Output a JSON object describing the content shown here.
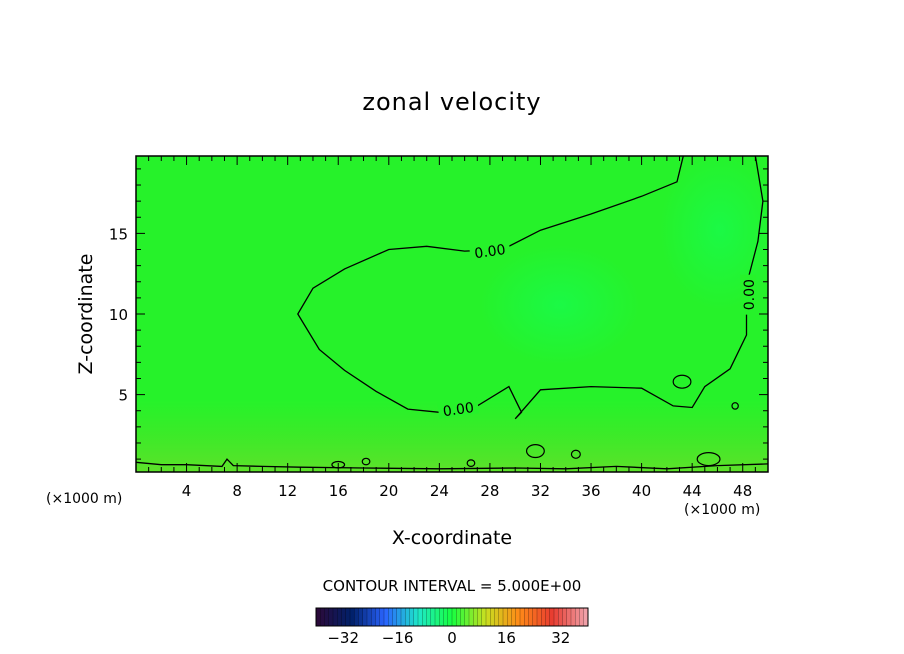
{
  "chart_data": {
    "type": "contour",
    "title": "zonal velocity",
    "xlabel": "X-coordinate",
    "ylabel": "Z-coordinate",
    "x_units_left": "(×1000 m)",
    "x_units_right": "(×1000 m)",
    "xlim": [
      0,
      50
    ],
    "ylim": [
      0.2,
      19.8
    ],
    "x_ticks": [
      4,
      8,
      12,
      16,
      20,
      24,
      28,
      32,
      36,
      40,
      44,
      48
    ],
    "y_ticks": [
      5,
      10,
      15
    ],
    "contour_interval_text": "CONTOUR INTERVAL = 5.000E+00",
    "contour_labels": [
      {
        "text": "0.00",
        "x": 28,
        "z": 13.9
      },
      {
        "text": "0.00",
        "x": 25.5,
        "z": 4.1
      },
      {
        "text": "0.00",
        "x": 48.5,
        "z": 11.2
      }
    ],
    "zero_contour_main": [
      [
        43.3,
        19.8
      ],
      [
        42.8,
        18.2
      ],
      [
        40,
        17.3
      ],
      [
        36,
        16.2
      ],
      [
        32,
        15.2
      ],
      [
        29,
        14
      ],
      [
        26,
        13.9
      ],
      [
        23,
        14.2
      ],
      [
        20,
        14
      ],
      [
        16.5,
        12.8
      ],
      [
        14,
        11.6
      ],
      [
        12.8,
        10
      ],
      [
        14.5,
        7.8
      ],
      [
        16.5,
        6.5
      ],
      [
        19,
        5.2
      ],
      [
        21.5,
        4.1
      ],
      [
        24,
        3.9
      ],
      [
        27,
        4.3
      ],
      [
        29.5,
        5.5
      ],
      [
        30.5,
        3.9
      ],
      [
        30,
        3.5
      ],
      [
        32,
        5.3
      ],
      [
        36,
        5.5
      ],
      [
        40,
        5.4
      ],
      [
        42.5,
        4.3
      ],
      [
        44,
        4.2
      ],
      [
        45,
        5.5
      ],
      [
        47,
        6.6
      ],
      [
        48.3,
        8.7
      ],
      [
        48.3,
        11.8
      ],
      [
        49.2,
        14.5
      ],
      [
        49.6,
        17
      ],
      [
        49,
        19.8
      ]
    ],
    "zero_contour_surface": [
      [
        0,
        0.8
      ],
      [
        2,
        0.65
      ],
      [
        4,
        0.65
      ],
      [
        6.8,
        0.55
      ],
      [
        7.2,
        1.0
      ],
      [
        7.7,
        0.6
      ],
      [
        10,
        0.55
      ],
      [
        13,
        0.5
      ],
      [
        18,
        0.45
      ],
      [
        24,
        0.4
      ],
      [
        30,
        0.45
      ],
      [
        34,
        0.4
      ],
      [
        38,
        0.55
      ],
      [
        42,
        0.4
      ],
      [
        46,
        0.6
      ],
      [
        50,
        0.7
      ]
    ],
    "small_contours": [
      {
        "x": 43.2,
        "z": 5.8,
        "rx": 0.7,
        "rz": 0.4
      },
      {
        "x": 47.4,
        "z": 4.3,
        "rx": 0.25,
        "rz": 0.2
      },
      {
        "x": 31.6,
        "z": 1.5,
        "rx": 0.7,
        "rz": 0.4
      },
      {
        "x": 34.8,
        "z": 1.3,
        "rx": 0.35,
        "rz": 0.25
      },
      {
        "x": 16,
        "z": 0.65,
        "rx": 0.5,
        "rz": 0.2
      },
      {
        "x": 18.2,
        "z": 0.85,
        "rx": 0.3,
        "rz": 0.2
      },
      {
        "x": 26.5,
        "z": 0.75,
        "rx": 0.3,
        "rz": 0.2
      },
      {
        "x": 45.3,
        "z": 1.0,
        "rx": 0.9,
        "rz": 0.4
      }
    ],
    "colorbar": {
      "ticks": [
        -32,
        -16,
        0,
        16,
        32
      ],
      "tick_labels": [
        "−32",
        "−16",
        "0",
        "16",
        "32"
      ],
      "range": [
        -40,
        40
      ],
      "colors": [
        "#2a0a3a",
        "#00206a",
        "#2a64ff",
        "#1ee8c8",
        "#18ff40",
        "#c8e020",
        "#ff8a18",
        "#e83c30",
        "#f0a0a8"
      ]
    },
    "field_base_color": "#26f22a"
  }
}
